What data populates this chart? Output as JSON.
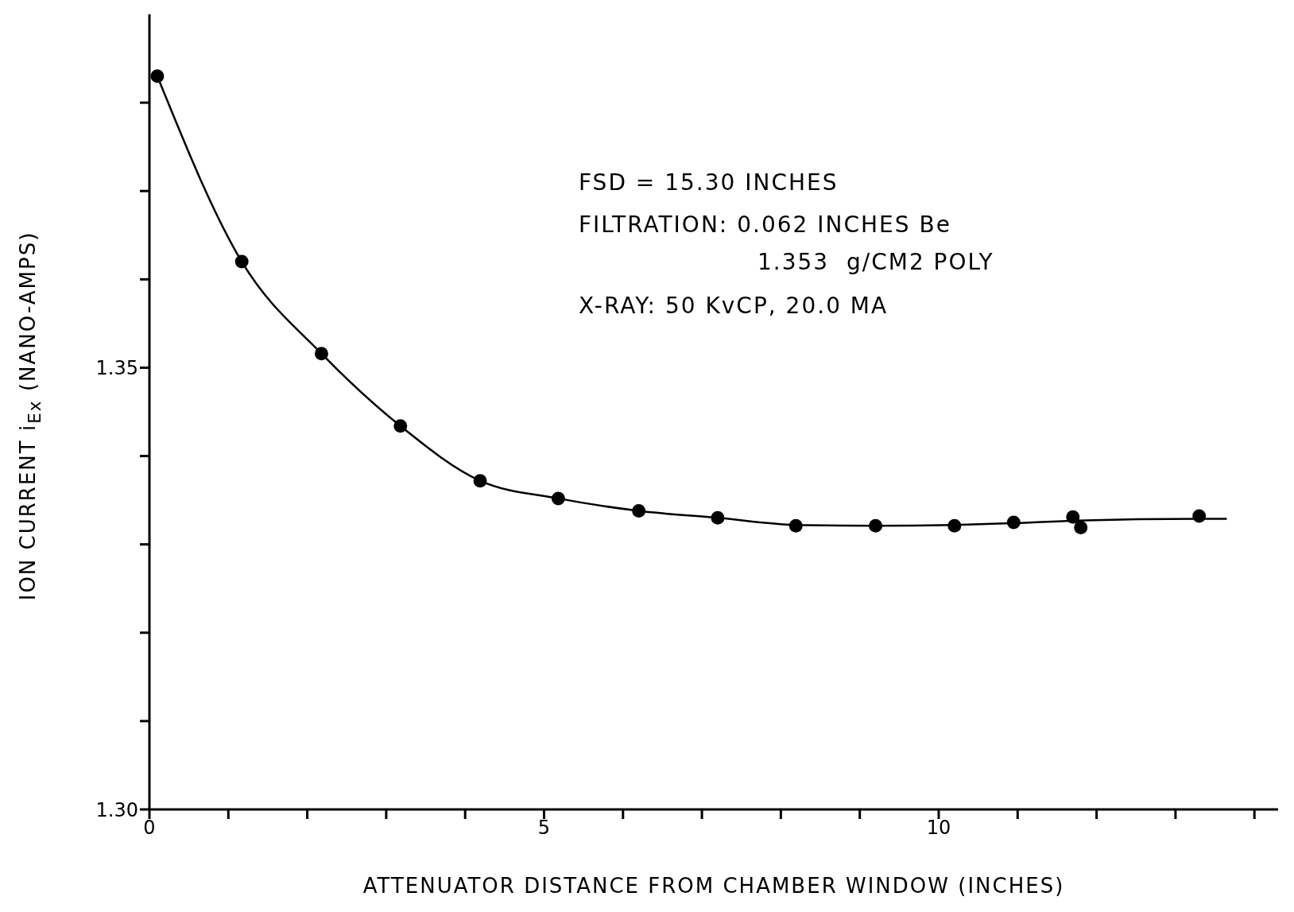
{
  "chart_data": {
    "type": "scatter",
    "xlabel": "ATTENUATOR DISTANCE FROM CHAMBER WINDOW (INCHES)",
    "ylabel": "ION CURRENT i$_{Ex}$ (NANO-AMPS)",
    "xlim": [
      0,
      14.3
    ],
    "xticks": [
      0,
      {
        "value": 1,
        "label": null
      },
      {
        "value": 2,
        "label": null
      },
      {
        "value": 3,
        "label": null
      },
      {
        "value": 4,
        "label": null
      },
      5,
      {
        "value": 6,
        "label": null
      },
      {
        "value": 7,
        "label": null
      },
      {
        "value": 8,
        "label": null
      },
      {
        "value": 9,
        "label": null
      },
      10,
      {
        "value": 11,
        "label": null
      },
      {
        "value": 12,
        "label": null
      },
      {
        "value": 13,
        "label": null
      },
      {
        "value": 14,
        "label": null
      }
    ],
    "ylim": [
      1.3,
      1.39
    ],
    "yticks": [
      {
        "value": 1.3,
        "label": "1.30"
      },
      {
        "value": 1.31,
        "label": null
      },
      {
        "value": 1.32,
        "label": null
      },
      {
        "value": 1.33,
        "label": null
      },
      {
        "value": 1.34,
        "label": null
      },
      1.35,
      {
        "value": 1.36,
        "label": null
      },
      {
        "value": 1.37,
        "label": null
      },
      {
        "value": 1.38,
        "label": null
      }
    ],
    "annotations": [
      "FSD = 15.30 INCHES",
      "FILTRATION: 0.062 INCHES Be",
      "1.353  g/CM2 POLY",
      "X-RAY: 50 KvCP, 20.0 MA"
    ],
    "series": [
      {
        "color": "#000000",
        "marker": "circle",
        "x": [
          0.1,
          1.17,
          2.18,
          3.18,
          4.19,
          5.18,
          6.2,
          7.2,
          8.19,
          9.2,
          10.2,
          10.95,
          11.7,
          11.8,
          13.3
        ],
        "values": [
          1.383,
          1.362,
          1.3516,
          1.3434,
          1.3372,
          1.3352,
          1.3338,
          1.333,
          1.3321,
          1.3321,
          1.3321,
          1.3325,
          1.3331,
          1.3319,
          1.3332
        ]
      },
      {
        "type": "line",
        "color": "#000000",
        "marker": "none",
        "x": [
          0.1,
          1.17,
          2.18,
          3.18,
          4.19,
          5.18,
          6.2,
          7.2,
          8.19,
          9.2,
          10.2,
          10.95,
          11.75,
          13.3,
          13.65
        ],
        "values": [
          1.383,
          1.362,
          1.3516,
          1.3434,
          1.3372,
          1.3352,
          1.3338,
          1.333,
          1.3322,
          1.3321,
          1.3322,
          1.3324,
          1.3327,
          1.3329,
          1.3329
        ]
      }
    ]
  }
}
